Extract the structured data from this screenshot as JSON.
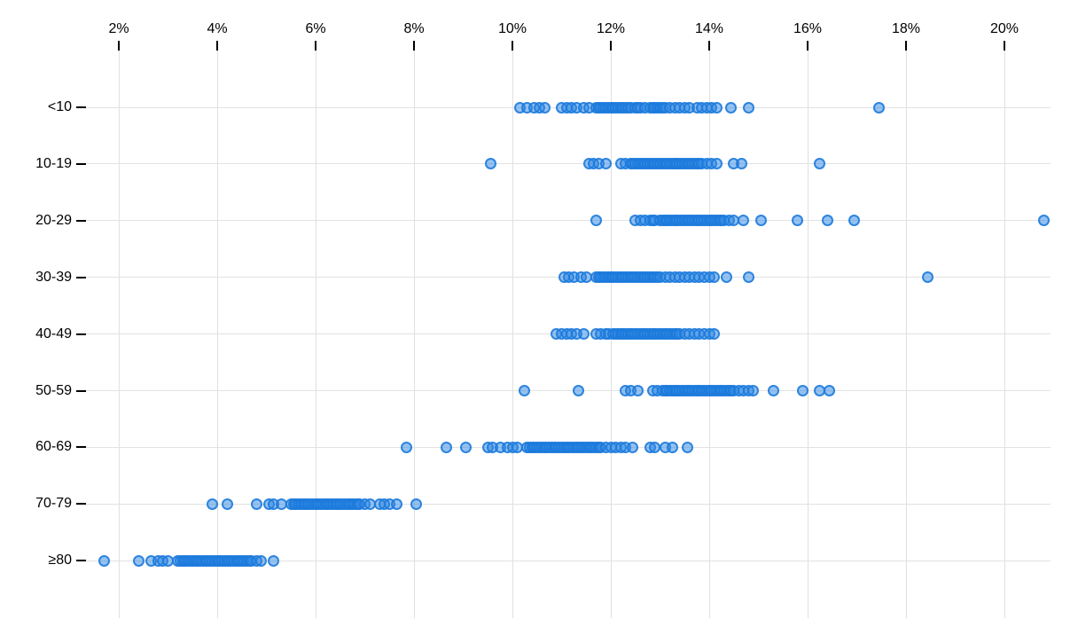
{
  "chart_data": {
    "type": "scatter",
    "subtype": "strip-plot",
    "title": "",
    "xlabel": "",
    "ylabel": "",
    "grid": true,
    "legend": false,
    "x_axis": {
      "position": "top",
      "unit": "%",
      "ticks": [
        2,
        4,
        6,
        8,
        10,
        12,
        14,
        16,
        18,
        20
      ],
      "tick_labels": [
        "2%",
        "4%",
        "6%",
        "8%",
        "10%",
        "12%",
        "14%",
        "16%",
        "18%",
        "20%"
      ],
      "domain": [
        1.2,
        21.3
      ]
    },
    "y_axis": {
      "position": "left",
      "categories": [
        "<10",
        "10-19",
        "20-29",
        "30-39",
        "40-49",
        "50-59",
        "60-69",
        "70-79",
        "≥80"
      ]
    },
    "point_style": {
      "stroke_color": "#1b79db",
      "fill_color": "#2b86e4",
      "fill_opacity": 0.5,
      "radius_px": 6.5
    },
    "gridline_color": "#e0e0e0",
    "series": [
      {
        "category": "<10",
        "values": [
          10.15,
          10.3,
          10.45,
          10.55,
          10.65,
          11.0,
          11.1,
          11.2,
          11.3,
          11.45,
          11.55,
          11.7,
          11.75,
          11.8,
          11.85,
          11.9,
          11.95,
          12.0,
          12.05,
          12.1,
          12.15,
          12.2,
          12.25,
          12.3,
          12.35,
          12.4,
          12.5,
          12.55,
          12.6,
          12.7,
          12.8,
          12.85,
          12.9,
          12.95,
          13.0,
          13.05,
          13.1,
          13.2,
          13.3,
          13.4,
          13.5,
          13.6,
          13.75,
          13.85,
          13.95,
          14.05,
          14.15,
          14.45,
          14.8,
          17.45
        ]
      },
      {
        "category": "10-19",
        "values": [
          9.55,
          11.55,
          11.65,
          11.75,
          11.9,
          12.2,
          12.3,
          12.4,
          12.45,
          12.5,
          12.55,
          12.6,
          12.65,
          12.7,
          12.75,
          12.8,
          12.85,
          12.9,
          12.95,
          13.0,
          13.05,
          13.1,
          13.15,
          13.2,
          13.25,
          13.3,
          13.35,
          13.4,
          13.45,
          13.5,
          13.55,
          13.6,
          13.65,
          13.7,
          13.75,
          13.8,
          13.85,
          13.95,
          14.05,
          14.15,
          14.5,
          14.65,
          16.25
        ]
      },
      {
        "category": "20-29",
        "values": [
          11.7,
          12.5,
          12.6,
          12.7,
          12.8,
          12.85,
          12.9,
          13.0,
          13.05,
          13.1,
          13.15,
          13.2,
          13.25,
          13.3,
          13.35,
          13.4,
          13.45,
          13.5,
          13.55,
          13.6,
          13.65,
          13.7,
          13.75,
          13.8,
          13.85,
          13.9,
          13.95,
          14.0,
          14.05,
          14.1,
          14.15,
          14.2,
          14.25,
          14.3,
          14.4,
          14.5,
          14.7,
          15.05,
          15.8,
          16.4,
          16.95,
          20.8
        ]
      },
      {
        "category": "30-39",
        "values": [
          11.05,
          11.15,
          11.25,
          11.4,
          11.5,
          11.7,
          11.75,
          11.8,
          11.85,
          11.9,
          11.95,
          12.0,
          12.05,
          12.1,
          12.15,
          12.2,
          12.25,
          12.3,
          12.35,
          12.4,
          12.45,
          12.5,
          12.55,
          12.6,
          12.65,
          12.7,
          12.75,
          12.8,
          12.85,
          12.9,
          12.95,
          13.0,
          13.1,
          13.2,
          13.3,
          13.4,
          13.5,
          13.6,
          13.7,
          13.8,
          13.9,
          14.0,
          14.1,
          14.35,
          14.8,
          18.45
        ]
      },
      {
        "category": "40-49",
        "values": [
          10.9,
          11.0,
          11.1,
          11.2,
          11.3,
          11.45,
          11.7,
          11.8,
          11.9,
          11.95,
          12.05,
          12.1,
          12.15,
          12.2,
          12.25,
          12.3,
          12.35,
          12.4,
          12.45,
          12.5,
          12.55,
          12.6,
          12.65,
          12.7,
          12.75,
          12.8,
          12.85,
          12.9,
          12.95,
          13.0,
          13.05,
          13.1,
          13.15,
          13.2,
          13.25,
          13.3,
          13.35,
          13.4,
          13.5,
          13.6,
          13.7,
          13.8,
          13.9,
          14.0,
          14.1
        ]
      },
      {
        "category": "50-59",
        "values": [
          10.25,
          11.35,
          12.3,
          12.4,
          12.55,
          12.85,
          12.95,
          13.05,
          13.1,
          13.15,
          13.2,
          13.25,
          13.3,
          13.35,
          13.4,
          13.45,
          13.5,
          13.55,
          13.6,
          13.65,
          13.7,
          13.75,
          13.8,
          13.85,
          13.9,
          13.95,
          14.0,
          14.05,
          14.1,
          14.15,
          14.2,
          14.25,
          14.3,
          14.35,
          14.4,
          14.45,
          14.5,
          14.6,
          14.7,
          14.8,
          14.9,
          15.3,
          15.9,
          16.25,
          16.45
        ]
      },
      {
        "category": "60-69",
        "values": [
          7.85,
          8.65,
          9.05,
          9.5,
          9.6,
          9.75,
          9.9,
          10.0,
          10.1,
          10.3,
          10.35,
          10.4,
          10.45,
          10.5,
          10.55,
          10.6,
          10.65,
          10.7,
          10.75,
          10.8,
          10.85,
          10.9,
          10.95,
          11.0,
          11.05,
          11.1,
          11.15,
          11.2,
          11.25,
          11.3,
          11.35,
          11.4,
          11.45,
          11.5,
          11.55,
          11.6,
          11.65,
          11.7,
          11.75,
          11.8,
          11.9,
          12.0,
          12.1,
          12.2,
          12.3,
          12.45,
          12.8,
          12.9,
          13.1,
          13.25,
          13.55
        ]
      },
      {
        "category": "70-79",
        "values": [
          3.9,
          4.2,
          4.8,
          5.05,
          5.15,
          5.3,
          5.5,
          5.55,
          5.6,
          5.65,
          5.7,
          5.75,
          5.8,
          5.85,
          5.9,
          5.95,
          6.0,
          6.05,
          6.1,
          6.15,
          6.2,
          6.25,
          6.3,
          6.35,
          6.4,
          6.45,
          6.5,
          6.55,
          6.6,
          6.65,
          6.7,
          6.75,
          6.8,
          6.85,
          6.9,
          7.0,
          7.1,
          7.3,
          7.4,
          7.5,
          7.65,
          8.05
        ]
      },
      {
        "category": "≥80",
        "values": [
          1.7,
          2.4,
          2.65,
          2.8,
          2.9,
          3.0,
          3.2,
          3.25,
          3.3,
          3.35,
          3.4,
          3.45,
          3.5,
          3.55,
          3.6,
          3.65,
          3.7,
          3.75,
          3.8,
          3.85,
          3.9,
          3.95,
          4.0,
          4.05,
          4.1,
          4.15,
          4.2,
          4.25,
          4.3,
          4.35,
          4.4,
          4.45,
          4.5,
          4.55,
          4.6,
          4.65,
          4.7,
          4.8,
          4.9,
          5.15
        ]
      }
    ]
  }
}
